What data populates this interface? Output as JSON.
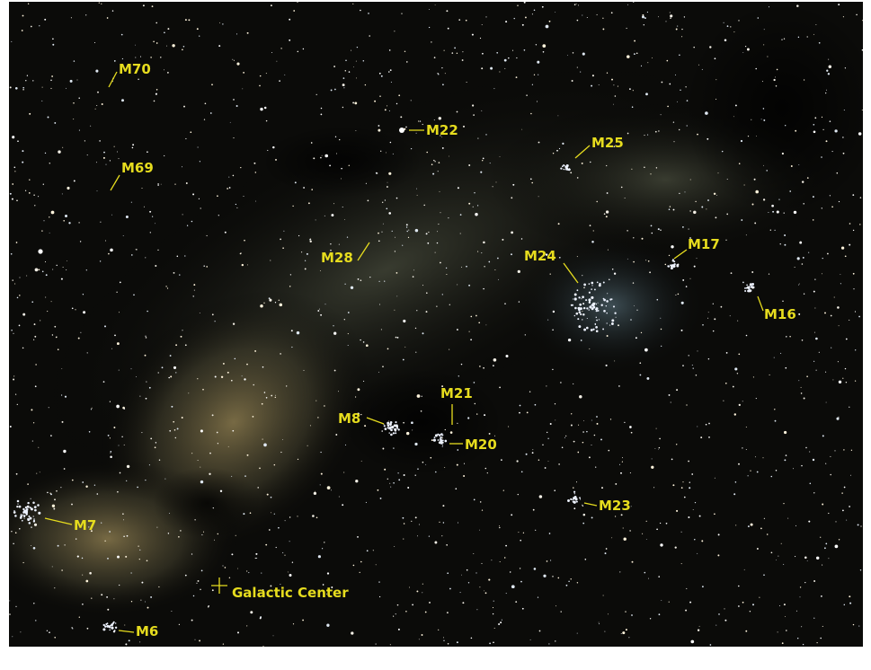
{
  "labels": [
    "M70",
    "M69",
    "M22",
    "M25",
    "M28",
    "M24",
    "M17",
    "M16",
    "M21",
    "M8",
    "M20",
    "M23",
    "M7",
    "Galactic Center",
    "M6"
  ]
}
